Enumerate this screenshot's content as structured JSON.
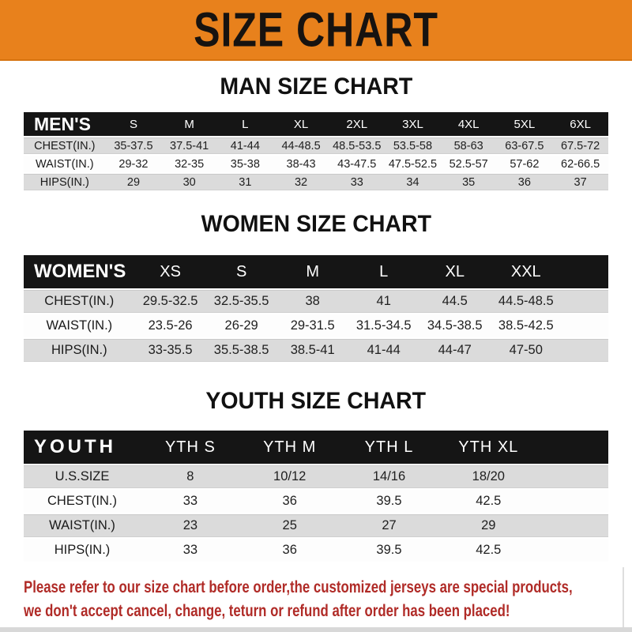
{
  "banner": {
    "title": "SIZE CHART",
    "bg_color": "#E8811C",
    "text_color": "#171310"
  },
  "sections": [
    {
      "title": "MAN SIZE CHART",
      "header": [
        "MEN'S",
        "S",
        "M",
        "L",
        "XL",
        "2XL",
        "3XL",
        "4XL",
        "5XL",
        "6XL"
      ],
      "rows": [
        [
          "CHEST(IN.)",
          "35-37.5",
          "37.5-41",
          "41-44",
          "44-48.5",
          "48.5-53.5",
          "53.5-58",
          "58-63",
          "63-67.5",
          "67.5-72"
        ],
        [
          "WAIST(IN.)",
          "29-32",
          "32-35",
          "35-38",
          "38-43",
          "43-47.5",
          "47.5-52.5",
          "52.5-57",
          "57-62",
          "62-66.5"
        ],
        [
          "HIPS(IN.)",
          "29",
          "30",
          "31",
          "32",
          "33",
          "34",
          "35",
          "36",
          "37"
        ]
      ],
      "spacer": false
    },
    {
      "title": "WOMEN SIZE CHART",
      "header": [
        "WOMEN'S",
        "XS",
        "S",
        "M",
        "L",
        "XL",
        "XXL"
      ],
      "rows": [
        [
          "CHEST(IN.)",
          "29.5-32.5",
          "32.5-35.5",
          "38",
          "41",
          "44.5",
          "44.5-48.5"
        ],
        [
          "WAIST(IN.)",
          "23.5-26",
          "26-29",
          "29-31.5",
          "31.5-34.5",
          "34.5-38.5",
          "38.5-42.5"
        ],
        [
          "HIPS(IN.)",
          "33-35.5",
          "35.5-38.5",
          "38.5-41",
          "41-44",
          "44-47",
          "47-50"
        ]
      ],
      "spacer": true
    },
    {
      "title": "YOUTH SIZE CHART",
      "header": [
        "YOUTH",
        "YTH S",
        "YTH M",
        "YTH L",
        "YTH XL"
      ],
      "rows": [
        [
          "U.S.SIZE",
          "8",
          "10/12",
          "14/16",
          "18/20"
        ],
        [
          "CHEST(IN.)",
          "33",
          "36",
          "39.5",
          "42.5"
        ],
        [
          "WAIST(IN.)",
          "23",
          "25",
          "27",
          "29"
        ],
        [
          "HIPS(IN.)",
          "33",
          "36",
          "39.5",
          "42.5"
        ]
      ],
      "spacer": true
    }
  ],
  "footer": {
    "lines": [
      "Please refer to our size chart before order,the customized jerseys are special products,",
      "we don't accept cancel, change, teturn or refund after order has been placed!"
    ],
    "text_color": "#B02B27"
  },
  "colors": {
    "banner_orange": "#E8811C",
    "table_header_black": "#151515",
    "row_stripe_gray": "#DBDBDB",
    "row_stripe_white": "#FDFDFD",
    "footer_red": "#B02B27"
  }
}
